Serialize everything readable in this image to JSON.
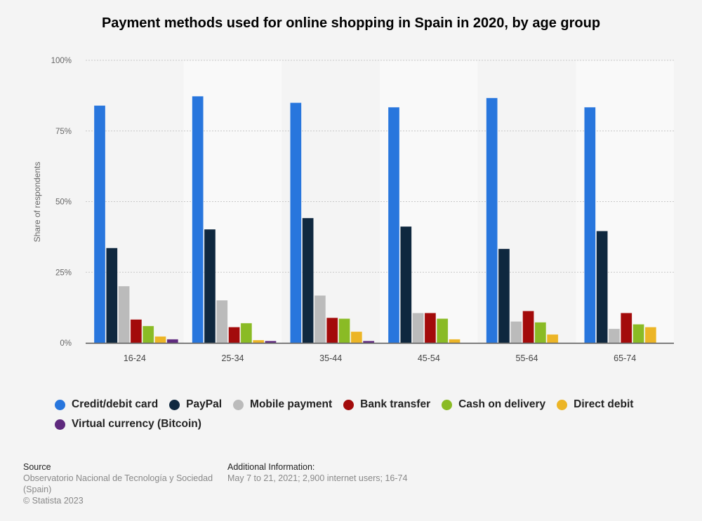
{
  "chart_data": {
    "type": "bar",
    "title": "Payment methods used for online shopping in Spain in 2020, by age group",
    "xlabel": "",
    "ylabel": "Share of respondents",
    "ylim": [
      0,
      100
    ],
    "yticks": [
      "0%",
      "25%",
      "50%",
      "75%",
      "100%"
    ],
    "grid": true,
    "legend_position": "bottom",
    "categories": [
      "16-24",
      "25-34",
      "35-44",
      "45-54",
      "55-64",
      "65-74"
    ],
    "series": [
      {
        "name": "Credit/debit card",
        "color": "#2876dd",
        "values": [
          84.0,
          87.3,
          85.0,
          83.4,
          86.7,
          83.4
        ]
      },
      {
        "name": "PayPal",
        "color": "#0f283f",
        "values": [
          33.6,
          40.2,
          44.2,
          41.2,
          33.3,
          39.6
        ]
      },
      {
        "name": "Mobile payment",
        "color": "#bbbbbb",
        "values": [
          20.1,
          15.1,
          16.8,
          10.6,
          7.6,
          5.0
        ]
      },
      {
        "name": "Bank transfer",
        "color": "#a30b0b",
        "values": [
          8.3,
          5.6,
          8.9,
          10.6,
          11.3,
          10.6
        ]
      },
      {
        "name": "Cash on delivery",
        "color": "#8abb25",
        "values": [
          6.0,
          7.0,
          8.6,
          8.6,
          7.3,
          6.6
        ]
      },
      {
        "name": "Direct debit",
        "color": "#ecb526",
        "values": [
          2.3,
          1.0,
          4.0,
          1.3,
          3.0,
          5.6
        ]
      },
      {
        "name": "Virtual currency (Bitcoin)",
        "color": "#5f2a7e",
        "values": [
          1.3,
          0.7,
          0.7,
          null,
          null,
          null
        ]
      }
    ]
  },
  "footer": {
    "source_heading": "Source",
    "source_text": "Observatorio Nacional de Tecnología y Sociedad (Spain)",
    "copyright": "© Statista 2023",
    "additional_heading": "Additional Information:",
    "additional_text": "May 7 to 21, 2021; 2,900 internet users; 16-74"
  }
}
